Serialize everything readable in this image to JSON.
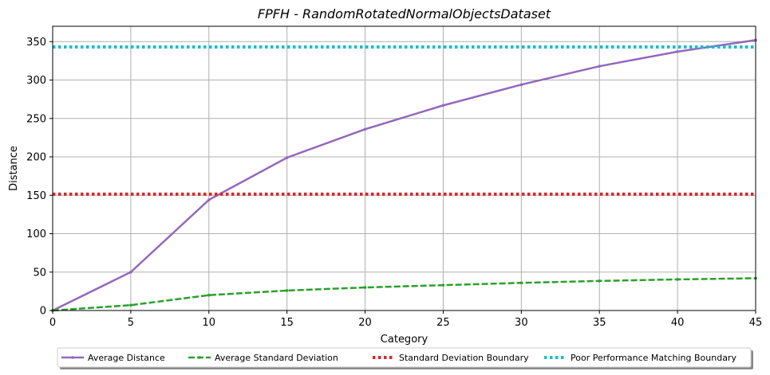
{
  "chart_data": {
    "type": "line",
    "title": "FPFH - RandomRotatedNormalObjectsDataset",
    "xlabel": "Category",
    "ylabel": "Distance",
    "xlim": [
      0,
      45
    ],
    "ylim": [
      0,
      370
    ],
    "xticks": [
      0,
      5,
      10,
      15,
      20,
      25,
      30,
      35,
      40,
      45
    ],
    "yticks": [
      0,
      50,
      100,
      150,
      200,
      250,
      300,
      350
    ],
    "grid": true,
    "legend_placement": "bottom-center",
    "x": [
      0,
      5,
      10,
      15,
      20,
      25,
      30,
      35,
      40,
      45
    ],
    "series": [
      {
        "name": "Average Distance",
        "values": [
          0,
          50,
          144,
          199,
          236,
          267,
          294,
          318,
          337,
          352
        ],
        "color": "#9467bd",
        "style": "solid",
        "marker": "dot"
      },
      {
        "name": "Average Standard Deviation",
        "values": [
          0,
          7,
          20,
          26,
          30,
          33,
          36,
          38.5,
          40.5,
          42
        ],
        "color": "#2ca02c",
        "style": "dashed",
        "marker": "dot"
      },
      {
        "name": "Standard Deviation Boundary",
        "values": [
          151.5,
          151.5,
          151.5,
          151.5,
          151.5,
          151.5,
          151.5,
          151.5,
          151.5,
          151.5
        ],
        "color": "#d62728",
        "style": "dotted",
        "marker": "none"
      },
      {
        "name": "Poor Performance Matching Boundary",
        "values": [
          343,
          343,
          343,
          343,
          343,
          343,
          343,
          343,
          343,
          343
        ],
        "color": "#17becf",
        "style": "dotted",
        "marker": "none"
      }
    ]
  }
}
